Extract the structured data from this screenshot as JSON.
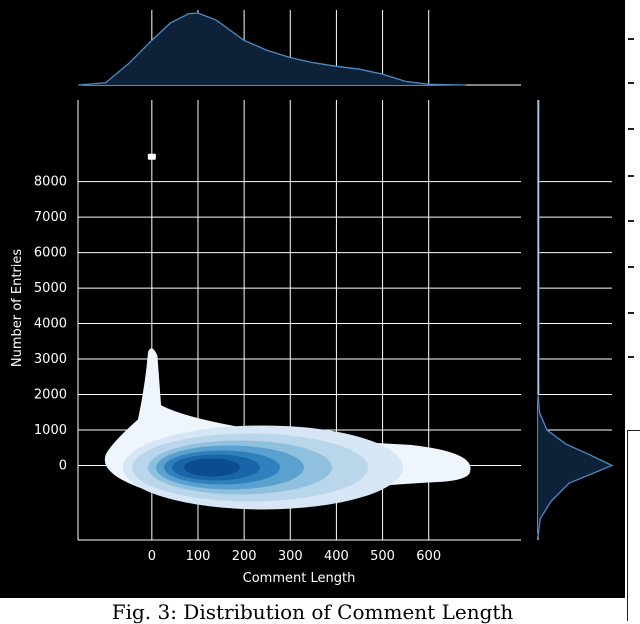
{
  "caption": "Fig. 3: Distribution of Comment Length",
  "chart_data": {
    "type": "kde-joint",
    "xlabel": "Comment Length",
    "ylabel": "Number of Entries",
    "x_ticks": [
      0,
      100,
      200,
      300,
      400,
      500,
      600
    ],
    "y_ticks": [
      0,
      1000,
      2000,
      3000,
      4000,
      5000,
      6000,
      7000,
      8000
    ],
    "xlim": [
      -160,
      800
    ],
    "ylim": [
      -2100,
      10300
    ],
    "grid": true,
    "background": "#000000",
    "grid_color": "#ffffff",
    "kde_colors": [
      "#eef5fc",
      "#d6e6f4",
      "#b9d6ea",
      "#8fc1de",
      "#5ba1cf",
      "#3080bd",
      "#1a64a8",
      "#0b4b8f"
    ],
    "marginal_color": "#4e8ac4",
    "outlier_point": {
      "x": 0,
      "y": 8700
    },
    "kde_peak": {
      "x": 100,
      "y": 0
    },
    "marginal_x_density": [
      [
        -160,
        0
      ],
      [
        -100,
        0.03
      ],
      [
        -50,
        0.3
      ],
      [
        0,
        0.62
      ],
      [
        40,
        0.86
      ],
      [
        80,
        0.99
      ],
      [
        100,
        1.0
      ],
      [
        140,
        0.9
      ],
      [
        200,
        0.62
      ],
      [
        250,
        0.48
      ],
      [
        300,
        0.38
      ],
      [
        350,
        0.31
      ],
      [
        400,
        0.26
      ],
      [
        450,
        0.22
      ],
      [
        500,
        0.15
      ],
      [
        550,
        0.05
      ],
      [
        600,
        0.01
      ],
      [
        680,
        0
      ]
    ],
    "marginal_y_density": [
      [
        -2000,
        0
      ],
      [
        -1500,
        0.03
      ],
      [
        -1000,
        0.18
      ],
      [
        -500,
        0.42
      ],
      [
        0,
        1.0
      ],
      [
        300,
        0.7
      ],
      [
        600,
        0.38
      ],
      [
        1000,
        0.12
      ],
      [
        1500,
        0.02
      ],
      [
        2000,
        0
      ]
    ]
  }
}
